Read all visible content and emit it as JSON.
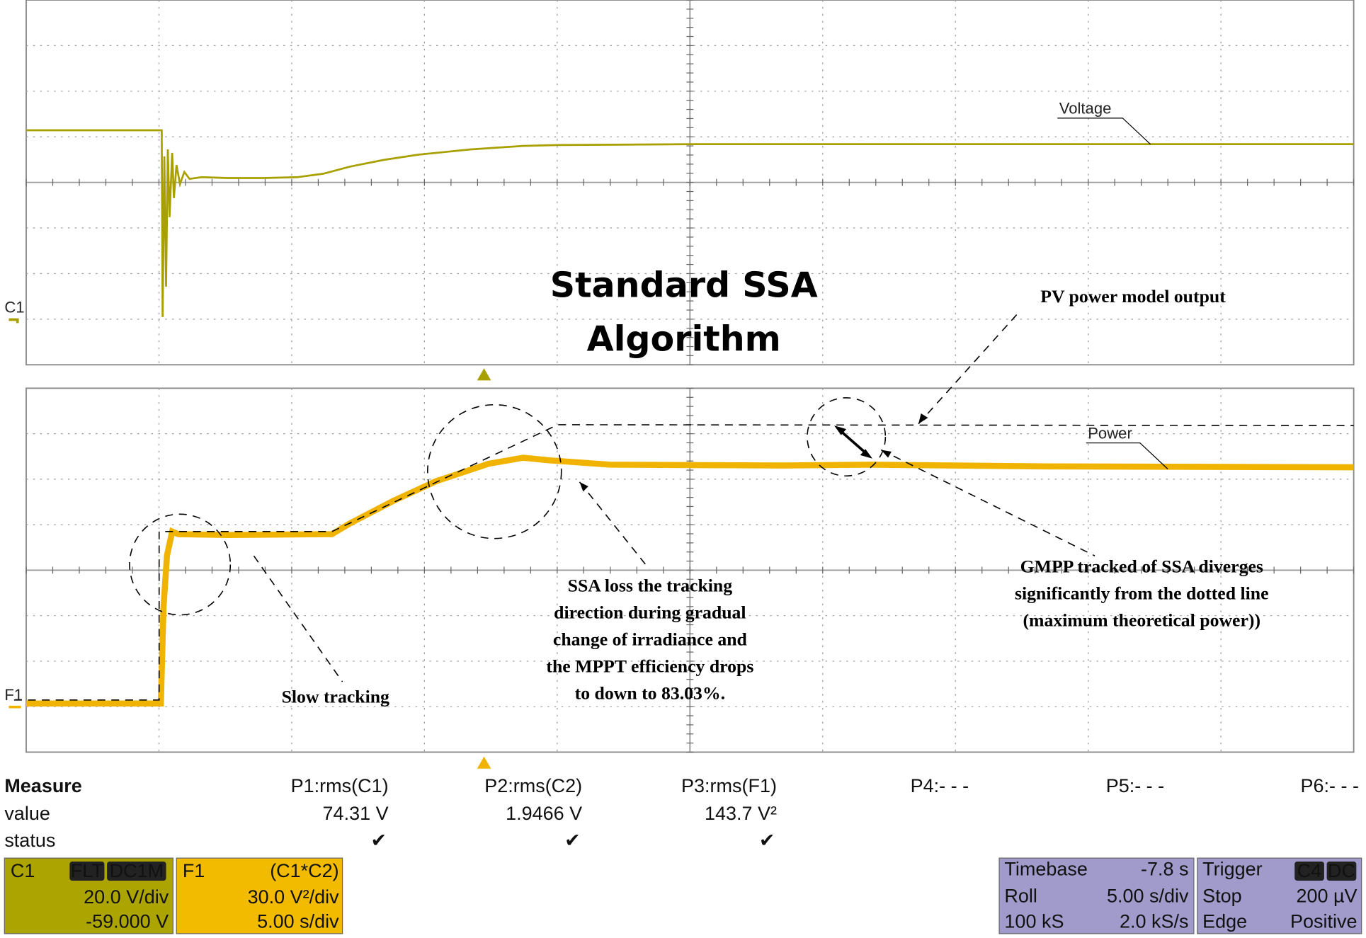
{
  "scope": {
    "trace_labels": {
      "voltage": "Voltage",
      "power": "Power",
      "c1": "C1",
      "f1": "F1"
    },
    "annotations": {
      "title": [
        "Standard SSA",
        "Algorithm"
      ],
      "pv_model": "PV power model output",
      "slow_tracking": "Slow tracking",
      "ssa_loss": [
        "SSA loss the tracking",
        "direction during gradual",
        "change of irradiance and",
        "the MPPT efficiency drops",
        "to down to 83.03%."
      ],
      "gmpp": [
        "GMPP tracked of SSA diverges",
        "significantly from the dotted line",
        "(maximum theoretical power))"
      ]
    },
    "measure": {
      "headers": [
        "Measure",
        "value",
        "status"
      ],
      "columns": [
        {
          "param": "P1:rms(C1)",
          "value": "74.31 V",
          "status": "✔"
        },
        {
          "param": "P2:rms(C2)",
          "value": "1.9466 V",
          "status": "✔"
        },
        {
          "param": "P3:rms(F1)",
          "value": "143.7 V²",
          "status": "✔"
        },
        {
          "param": "P4:- - -"
        },
        {
          "param": "P5:- - -"
        },
        {
          "param": "P6:- - -"
        }
      ]
    },
    "channels": [
      {
        "name": "C1",
        "tags": [
          "FLT",
          "DC1M"
        ],
        "scale": "20.0 V/div",
        "offset": "-59.000 V"
      },
      {
        "name": "F1",
        "function": "(C1*C2)",
        "scale": "30.0 V²/div",
        "timebase": "5.00 s/div"
      }
    ],
    "timebase": {
      "label": "Timebase",
      "value": "-7.8 s",
      "mode": "Roll",
      "div": "5.00 s/div",
      "samples": "100 kS",
      "rate": "2.0 kS/s"
    },
    "trigger": {
      "label": "Trigger",
      "tags": [
        "C4",
        "DC"
      ],
      "mode": "Stop",
      "level": "200 µV",
      "type": "Edge",
      "slope": "Positive"
    }
  }
}
